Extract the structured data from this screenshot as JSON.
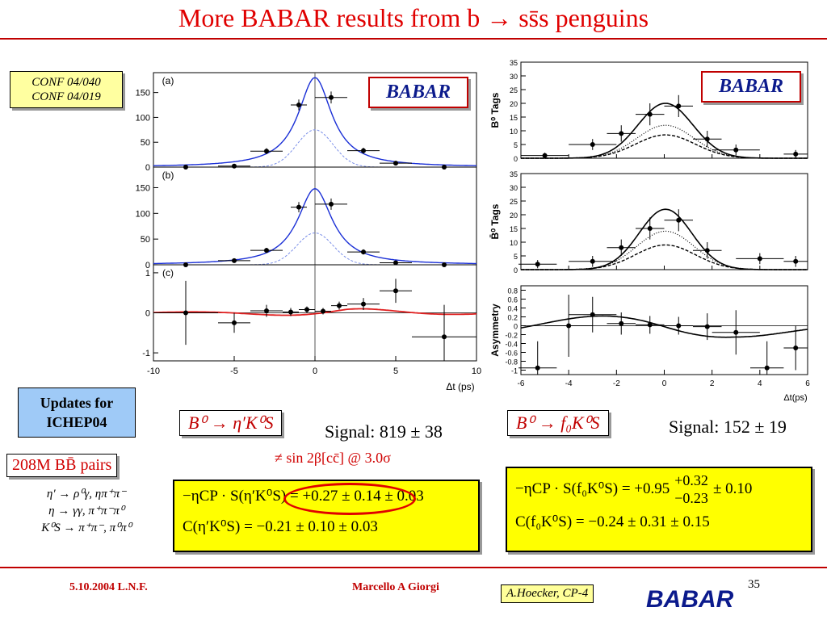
{
  "slide": {
    "title": "More BABAR results from b → ss̄s penguins",
    "conf_notes": [
      "CONF 04/040",
      "CONF 04/019"
    ],
    "updates": [
      "Updates for",
      "ICHEP04"
    ],
    "pairs": "208M BB̄ pairs",
    "decays": [
      "η′ → ρ⁰γ, ηπ⁺π⁻",
      "η → γγ, π⁺π⁻π⁰",
      "K⁰S → π⁺π⁻, π⁰π⁰"
    ],
    "babar_logo": "BABAR",
    "footer_date": "5.10.2004 L.N.F.",
    "footer_author": "Marcello A Giorgi",
    "footer_note": "A.Hoecker, CP-4",
    "page_number": "35",
    "colors": {
      "title": "#e00000",
      "box_yellow": "#ffff00",
      "box_blue": "#9fcaf7",
      "fit_blue": "#1a2fd6",
      "fit_red": "#e02020"
    }
  },
  "left": {
    "decay": "B⁰ → η′K⁰S",
    "signal": "Signal: 819 ± 38",
    "note": "≠ sin 2β[cc̄] @ 3.0σ",
    "s_line": "−ηCP · S(η′K⁰S) = +0.27 ± 0.14 ± 0.03",
    "c_line": "C(η′K⁰S) = −0.21 ± 0.10 ± 0.03"
  },
  "right": {
    "decay": "B⁰ → f₀K⁰S",
    "signal": "Signal: 152 ± 19",
    "s_line_main": "−ηCP · S(f₀K⁰S) = +0.95",
    "s_line_asym": [
      "+0.32",
      "−0.23"
    ],
    "s_line_syst": "± 0.10",
    "c_line": "C(f₀K⁰S) = −0.24 ± 0.31 ± 0.15"
  },
  "chart_data": [
    {
      "type": "scatter",
      "title": "",
      "xlabel": "Δt (ps)",
      "xlim": [
        -10,
        10
      ],
      "panels": [
        {
          "label": "(a)",
          "ylim": [
            0,
            190
          ],
          "yticks": [
            0,
            50,
            100,
            150
          ],
          "points": [
            {
              "x": -8,
              "y": 0,
              "xerr": 2
            },
            {
              "x": -5,
              "y": 2,
              "xerr": 1
            },
            {
              "x": -3,
              "y": 32,
              "xerr": 1,
              "yerr": 6
            },
            {
              "x": -1,
              "y": 125,
              "xerr": 0.5,
              "yerr": 11
            },
            {
              "x": 1,
              "y": 140,
              "xerr": 1,
              "yerr": 12
            },
            {
              "x": 3,
              "y": 33,
              "xerr": 1,
              "yerr": 6
            },
            {
              "x": 5,
              "y": 8,
              "xerr": 1
            },
            {
              "x": 8,
              "y": 0,
              "xerr": 2
            }
          ]
        },
        {
          "label": "(b)",
          "ylim": [
            0,
            190
          ],
          "yticks": [
            0,
            50,
            100,
            150
          ],
          "points": [
            {
              "x": -8,
              "y": 0,
              "xerr": 2
            },
            {
              "x": -5,
              "y": 8,
              "xerr": 1
            },
            {
              "x": -3,
              "y": 28,
              "xerr": 1,
              "yerr": 5
            },
            {
              "x": -1,
              "y": 112,
              "xerr": 0.5,
              "yerr": 10
            },
            {
              "x": 1,
              "y": 118,
              "xerr": 1,
              "yerr": 11
            },
            {
              "x": 3,
              "y": 25,
              "xerr": 1,
              "yerr": 5
            },
            {
              "x": 5,
              "y": 4,
              "xerr": 1
            },
            {
              "x": 8,
              "y": 0,
              "xerr": 2
            }
          ]
        },
        {
          "label": "(c)",
          "ylim": [
            -1.2,
            1.2
          ],
          "yticks": [
            -1,
            0,
            1
          ],
          "points": [
            {
              "x": -8,
              "y": 0,
              "xerr": 2,
              "yerr": 0.8
            },
            {
              "x": -5,
              "y": -0.25,
              "xerr": 1,
              "yerr": 0.25
            },
            {
              "x": -3,
              "y": 0.05,
              "xerr": 1,
              "yerr": 0.15
            },
            {
              "x": -1.5,
              "y": 0.02,
              "xerr": 0.5,
              "yerr": 0.1
            },
            {
              "x": -0.5,
              "y": 0.08,
              "xerr": 0.5,
              "yerr": 0.08
            },
            {
              "x": 0.5,
              "y": 0.04,
              "xerr": 0.5,
              "yerr": 0.08
            },
            {
              "x": 1.5,
              "y": 0.18,
              "xerr": 0.5,
              "yerr": 0.1
            },
            {
              "x": 3,
              "y": 0.22,
              "xerr": 1,
              "yerr": 0.15
            },
            {
              "x": 5,
              "y": 0.55,
              "xerr": 1,
              "yerr": 0.3
            },
            {
              "x": 8,
              "y": -0.6,
              "xerr": 2,
              "yerr": 0.8
            }
          ]
        }
      ],
      "xticks": [
        -10,
        -5,
        0,
        5,
        10
      ]
    },
    {
      "type": "scatter",
      "title": "",
      "xlabel": "Δt(ps)",
      "xlim": [
        -6,
        6
      ],
      "panels": [
        {
          "ylabel": "B⁰ Tags",
          "ylim": [
            0,
            35
          ],
          "yticks": [
            0,
            5,
            10,
            15,
            20,
            25,
            30,
            35
          ],
          "points": [
            {
              "x": -5,
              "y": 1,
              "xerr": 1,
              "yerr": 1
            },
            {
              "x": -3,
              "y": 5,
              "xerr": 1,
              "yerr": 2
            },
            {
              "x": -1.8,
              "y": 9,
              "xerr": 0.6,
              "yerr": 3
            },
            {
              "x": -0.6,
              "y": 16,
              "xerr": 0.6,
              "yerr": 4
            },
            {
              "x": 0.6,
              "y": 19,
              "xerr": 0.6,
              "yerr": 4
            },
            {
              "x": 1.8,
              "y": 7,
              "xerr": 0.6,
              "yerr": 3
            },
            {
              "x": 3,
              "y": 3,
              "xerr": 1,
              "yerr": 2
            },
            {
              "x": 5.5,
              "y": 1.5,
              "xerr": 0.5,
              "yerr": 1.5
            }
          ]
        },
        {
          "ylabel": "B̄⁰ Tags",
          "ylim": [
            0,
            35
          ],
          "yticks": [
            0,
            5,
            10,
            15,
            20,
            25,
            30,
            35
          ],
          "points": [
            {
              "x": -5.3,
              "y": 2,
              "xerr": 0.8,
              "yerr": 1.5
            },
            {
              "x": -3,
              "y": 3,
              "xerr": 1,
              "yerr": 2
            },
            {
              "x": -1.8,
              "y": 8,
              "xerr": 0.6,
              "yerr": 3
            },
            {
              "x": -0.6,
              "y": 15,
              "xerr": 0.6,
              "yerr": 4
            },
            {
              "x": 0.6,
              "y": 18,
              "xerr": 0.6,
              "yerr": 4
            },
            {
              "x": 1.8,
              "y": 7,
              "xerr": 0.6,
              "yerr": 3
            },
            {
              "x": 4,
              "y": 4,
              "xerr": 1,
              "yerr": 2
            },
            {
              "x": 5.5,
              "y": 3,
              "xerr": 0.5,
              "yerr": 2
            }
          ]
        },
        {
          "ylabel": "Asymmetry",
          "ylim": [
            -1.1,
            0.9
          ],
          "yticks": [
            -1,
            -0.8,
            -0.6,
            -0.4,
            -0.2,
            0,
            0.2,
            0.4,
            0.6,
            0.8
          ],
          "points": [
            {
              "x": -5.3,
              "y": -0.95,
              "xerr": 0.8,
              "yerr": 0.6
            },
            {
              "x": -4,
              "y": 0,
              "xerr": 1,
              "yerr": 0.7
            },
            {
              "x": -3,
              "y": 0.25,
              "xerr": 1,
              "yerr": 0.4
            },
            {
              "x": -1.8,
              "y": 0.05,
              "xerr": 0.6,
              "yerr": 0.25
            },
            {
              "x": -0.6,
              "y": 0.02,
              "xerr": 0.6,
              "yerr": 0.2
            },
            {
              "x": 0.6,
              "y": 0.0,
              "xerr": 0.6,
              "yerr": 0.2
            },
            {
              "x": 1.8,
              "y": -0.02,
              "xerr": 0.6,
              "yerr": 0.3
            },
            {
              "x": 3,
              "y": -0.15,
              "xerr": 1,
              "yerr": 0.5
            },
            {
              "x": 4.3,
              "y": -0.95,
              "xerr": 0.7,
              "yerr": 0.6
            },
            {
              "x": 5.5,
              "y": -0.5,
              "xerr": 0.5,
              "yerr": 0.5
            }
          ]
        }
      ],
      "xticks": [
        -6,
        -4,
        -2,
        0,
        2,
        4,
        6
      ]
    }
  ]
}
